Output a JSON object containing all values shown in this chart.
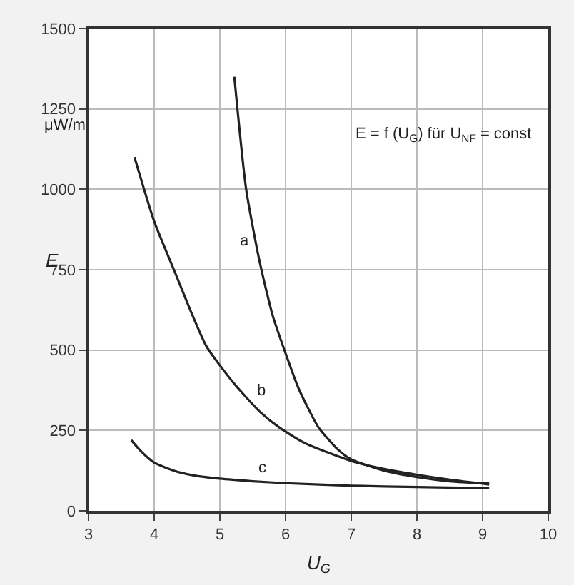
{
  "chart_data": {
    "type": "line",
    "xlabel": "U$_{G}$",
    "ylabel": "E",
    "xlim": [
      3,
      10
    ],
    "xticks": [
      3,
      4,
      5,
      6,
      7,
      8,
      9,
      10
    ],
    "ylim": [
      0,
      1500
    ],
    "yticks": [
      0,
      250,
      500,
      750,
      1000,
      1250,
      1500
    ],
    "grid": true,
    "marker": "none",
    "line_style": "solid",
    "series": [
      {
        "color": "#222222",
        "x": [
          5.22,
          5.4,
          5.6,
          5.8,
          6.0,
          6.2,
          6.5,
          6.8,
          7.0,
          7.5,
          8.0,
          8.5,
          9.1
        ],
        "values": [
          1350,
          1000,
          780,
          610,
          490,
          380,
          260,
          190,
          160,
          125,
          105,
          92,
          85
        ]
      },
      {
        "color": "#222222",
        "x": [
          3.7,
          4.0,
          4.3,
          4.6,
          4.8,
          5.2,
          5.6,
          5.9,
          6.3,
          7.0,
          7.5,
          8.0,
          8.5,
          9.1
        ],
        "values": [
          1100,
          900,
          750,
          600,
          510,
          400,
          310,
          260,
          210,
          155,
          130,
          112,
          97,
          82
        ]
      },
      {
        "color": "#222222",
        "x": [
          3.65,
          3.8,
          4.0,
          4.3,
          4.6,
          5.0,
          5.5,
          6.0,
          7.0,
          8.0,
          9.1
        ],
        "values": [
          220,
          185,
          150,
          125,
          110,
          100,
          92,
          86,
          78,
          74,
          70
        ]
      }
    ],
    "annotations": [
      "μW/m",
      "E = f (U$_{G}$) für U$_{NF}$ = const",
      "a",
      "b",
      "c"
    ]
  }
}
